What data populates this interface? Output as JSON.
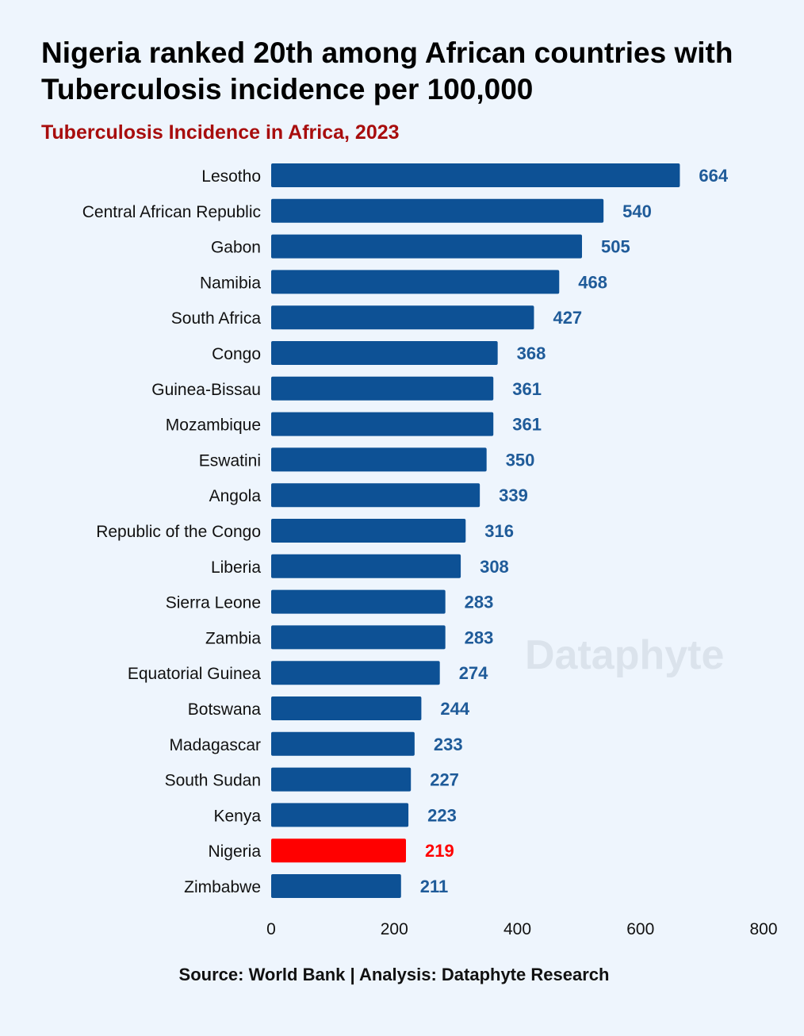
{
  "header": {
    "title": "Nigeria ranked 20th among African countries with Tuberculosis incidence per 100,000",
    "subtitle": "Tuberculosis Incidence in Africa, 2023"
  },
  "footer": {
    "source": "Source: World Bank | Analysis: Dataphyte Research"
  },
  "watermark": "Dataphyte",
  "colors": {
    "bar": "#0d5195",
    "highlight": "#ff0000",
    "label": "#1f5b99"
  },
  "chart_data": {
    "type": "bar",
    "orientation": "horizontal",
    "title": "Nigeria ranked 20th among African countries with Tuberculosis incidence per 100,000",
    "subtitle": "Tuberculosis Incidence in Africa, 2023",
    "xlabel": "",
    "ylabel": "",
    "xlim": [
      0,
      800
    ],
    "xticks": [
      0,
      200,
      400,
      600,
      800
    ],
    "grid": false,
    "highlight": "Nigeria",
    "categories": [
      "Lesotho",
      "Central African Republic",
      "Gabon",
      "Namibia",
      "South Africa",
      "Congo",
      "Guinea-Bissau",
      "Mozambique",
      "Eswatini",
      "Angola",
      "Republic of the Congo",
      "Liberia",
      "Sierra Leone",
      "Zambia",
      "Equatorial Guinea",
      "Botswana",
      "Madagascar",
      "South Sudan",
      "Kenya",
      "Nigeria",
      "Zimbabwe"
    ],
    "values": [
      664,
      540,
      505,
      468,
      427,
      368,
      361,
      361,
      350,
      339,
      316,
      308,
      283,
      283,
      274,
      244,
      233,
      227,
      223,
      219,
      211
    ]
  }
}
